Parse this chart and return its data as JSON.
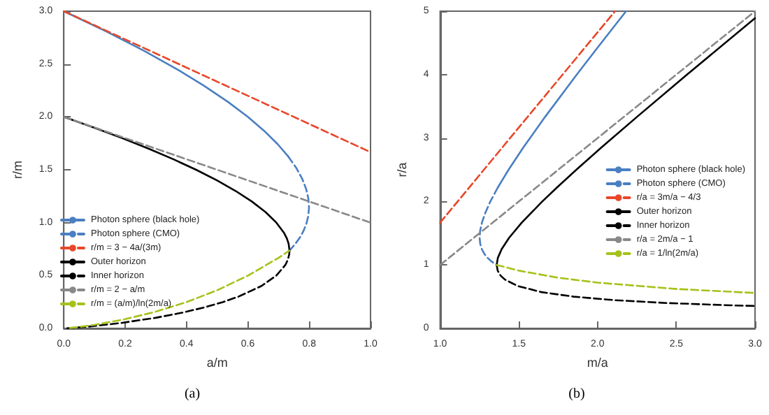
{
  "chart_data": [
    {
      "type": "line",
      "xlabel": "a/m",
      "ylabel": "r/m",
      "annotations": [
        "(a)"
      ],
      "xlim": [
        0,
        1
      ],
      "ylim": [
        0,
        3
      ],
      "xticks": [
        {
          "value": 0,
          "label": "0.0"
        },
        0.2,
        0.4,
        0.6,
        0.8,
        {
          "value": 1,
          "label": "1.0"
        }
      ],
      "yticks": [
        {
          "value": 0,
          "label": "0.0"
        },
        0.5,
        {
          "value": 1,
          "label": "1.0"
        },
        1.5,
        {
          "value": 2,
          "label": "2.0"
        },
        2.5,
        {
          "value": 3,
          "label": "3.0"
        }
      ],
      "grid": false,
      "legend": "left",
      "marker": "none",
      "series": [
        {
          "name": "Photon sphere (black hole)",
          "color": "#4a7fc1",
          "line_style": "solid",
          "x": [
            0,
            0.1403,
            0.2624,
            0.368,
            0.4585,
            0.5354,
            0.6001,
            0.6536,
            0.6971,
            0.7317
          ],
          "values": [
            3,
            2.8061,
            2.624,
            2.453,
            2.2924,
            2.1417,
            2.0002,
            1.8674,
            1.7428,
            1.626
          ]
        },
        {
          "name": "Photon sphere (CMO)",
          "color": "#4a7fc1",
          "line_style": "dashed",
          "x": [
            0.7317,
            0.7582,
            0.7774,
            0.7903,
            0.7974,
            0.7995,
            0.7971,
            0.7908,
            0.7811,
            0.7684,
            0.7532,
            0.7358
          ],
          "values": [
            1.626,
            1.5163,
            1.4135,
            1.3172,
            1.2268,
            1.1421,
            1.0628,
            0.9885,
            0.9189,
            0.8538,
            0.7928,
            0.7358
          ]
        },
        {
          "name": "r/m = 3 − 4a/(3m)",
          "color": "#e8472a",
          "line_style": "dashed",
          "x": [
            0,
            1
          ],
          "values": [
            3,
            1.6667
          ]
        },
        {
          "name": "Outer horizon",
          "color": "#000000",
          "line_style": "solid",
          "x": [
            0,
            0.0494,
            0.0975,
            0.1897,
            0.2763,
            0.357,
            0.4315,
            0.4993,
            0.56,
            0.613,
            0.6576,
            0.6931,
            0.7187,
            0.7273,
            0.733,
            0.7358
          ],
          "values": [
            2,
            1.95,
            1.9,
            1.8,
            1.7,
            1.6,
            1.5,
            1.4,
            1.3,
            1.2,
            1.1,
            1.0,
            0.9,
            0.85,
            0.8,
            0.7358
          ]
        },
        {
          "name": "Inner horizon",
          "color": "#000000",
          "line_style": "dashed",
          "x": [
            0.7358,
            0.7349,
            0.7306,
            0.7224,
            0.6931,
            0.6438,
            0.5691,
            0.5199,
            0.4605,
            0.3885,
            0.2996,
            0.1844,
            0.0921,
            0.053,
            0
          ],
          "values": [
            0.7358,
            0.7,
            0.65,
            0.6,
            0.5,
            0.4,
            0.3,
            0.25,
            0.2,
            0.15,
            0.1,
            0.05,
            0.02,
            0.01,
            0
          ]
        },
        {
          "name": "r/m = 2 − a/m",
          "color": "#888888",
          "line_style": "dashed",
          "x": [
            0,
            1
          ],
          "values": [
            2,
            1
          ]
        },
        {
          "name": "r/m = (a/m)/ln(2m/a)",
          "color": "#a5c21a",
          "line_style": "dashed",
          "x": [
            0.02,
            0.05,
            0.1,
            0.2,
            0.3,
            0.4,
            0.5,
            0.6,
            0.7,
            0.7358
          ],
          "values": [
            0.0043,
            0.0136,
            0.0334,
            0.0869,
            0.1581,
            0.2485,
            0.3607,
            0.4983,
            0.6668,
            0.7358
          ]
        }
      ]
    },
    {
      "type": "line",
      "xlabel": "m/a",
      "ylabel": "r/a",
      "annotations": [
        "(b)"
      ],
      "xlim": [
        1,
        3
      ],
      "ylim": [
        0,
        5
      ],
      "xticks": [
        {
          "value": 1,
          "label": "1.0"
        },
        1.5,
        {
          "value": 2,
          "label": "2.0"
        },
        2.5,
        {
          "value": 3,
          "label": "3.0"
        }
      ],
      "yticks": [
        0,
        1,
        2,
        3,
        4,
        5
      ],
      "grid": false,
      "legend": "right",
      "marker": "none",
      "series": [
        {
          "name": "Photon sphere (black hole)",
          "color": "#4a7fc1",
          "line_style": "solid",
          "x": [
            2.181,
            2.0057,
            1.8678,
            1.6664,
            1.53,
            1.4345,
            1.3667
          ],
          "values": [
            5,
            4.444,
            4,
            3.333,
            2.857,
            2.5,
            2.222
          ]
        },
        {
          "name": "Photon sphere (CMO)",
          "color": "#4a7fc1",
          "line_style": "dashed",
          "x": [
            1.3667,
            1.3189,
            1.2863,
            1.2653,
            1.2541,
            1.2508,
            1.2545,
            1.2645,
            1.2803,
            1.3014,
            1.3277,
            1.3591
          ],
          "values": [
            2.222,
            2,
            1.818,
            1.667,
            1.538,
            1.4286,
            1.333,
            1.25,
            1.176,
            1.111,
            1.0526,
            1
          ]
        },
        {
          "name": "r/a = 3m/a − 4/3",
          "color": "#e8472a",
          "line_style": "dashed",
          "x": [
            1,
            2.1111
          ],
          "values": [
            1.6667,
            5
          ]
        },
        {
          "name": "Outer horizon",
          "color": "#000000",
          "line_style": "solid",
          "x": [
            1.3591,
            1.3664,
            1.391,
            1.4384,
            1.5184,
            1.6487,
            1.7426,
            1.8648,
            2.0272,
            2.2498,
            2.5681,
            3
          ],
          "values": [
            1,
            1.111,
            1.25,
            1.4286,
            1.667,
            2,
            2.222,
            2.5,
            2.857,
            3.333,
            4,
            4.89
          ]
        },
        {
          "name": "Inner horizon",
          "color": "#000000",
          "line_style": "dashed",
          "x": [
            1.3591,
            1.3655,
            1.3834,
            1.4113,
            1.4939,
            1.6442,
            1.8473,
            2.1084,
            2.4365,
            2.8441,
            3
          ],
          "values": [
            1,
            0.909,
            0.8333,
            0.7692,
            0.6667,
            0.5714,
            0.5,
            0.4444,
            0.4,
            0.3636,
            0.353
          ]
        },
        {
          "name": "r/a = 2m/a − 1",
          "color": "#888888",
          "line_style": "dashed",
          "x": [
            1,
            3
          ],
          "values": [
            1,
            5
          ]
        },
        {
          "name": "r/a = 1/ln(2m/a)",
          "color": "#a5c21a",
          "line_style": "dashed",
          "x": [
            1.3591,
            1.5,
            1.75,
            2,
            2.5,
            3
          ],
          "values": [
            1,
            0.9102,
            0.7982,
            0.7213,
            0.6213,
            0.5581
          ]
        }
      ]
    }
  ]
}
